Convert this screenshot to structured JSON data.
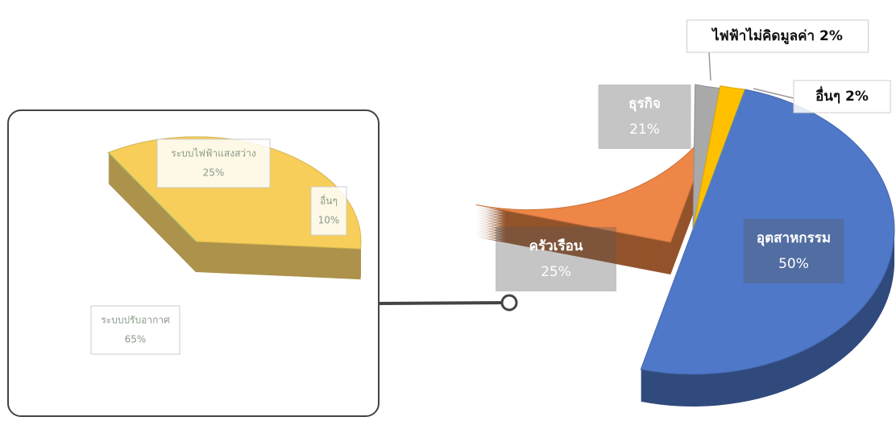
{
  "chart_data": [
    {
      "type": "pie",
      "categories": [
        "อุตสาหกรรม",
        "ครัวเรือน",
        "ธุรกิจ",
        "ไฟฟ้าไม่คิดมูลค่า",
        "อื่นๆ"
      ],
      "values": [
        50,
        25,
        21,
        2,
        2
      ],
      "value_labels": [
        "50%",
        "25%",
        "21%",
        "2%",
        "2%"
      ],
      "colors": [
        "#4f78c9",
        "#ed8646",
        "#a9a9a9",
        "#ffc000",
        "#5b9bd5"
      ]
    },
    {
      "type": "pie",
      "categories": [
        "ระบบไฟฟ้าแสงสว่าง",
        "อื่นๆ",
        "ระบบปรับอากาศ"
      ],
      "values": [
        25,
        10,
        65
      ],
      "value_labels": [
        "25%",
        "10%",
        "65%"
      ],
      "colors": [
        "#7aaee0",
        "#f5c230",
        "#86bb58"
      ]
    }
  ]
}
